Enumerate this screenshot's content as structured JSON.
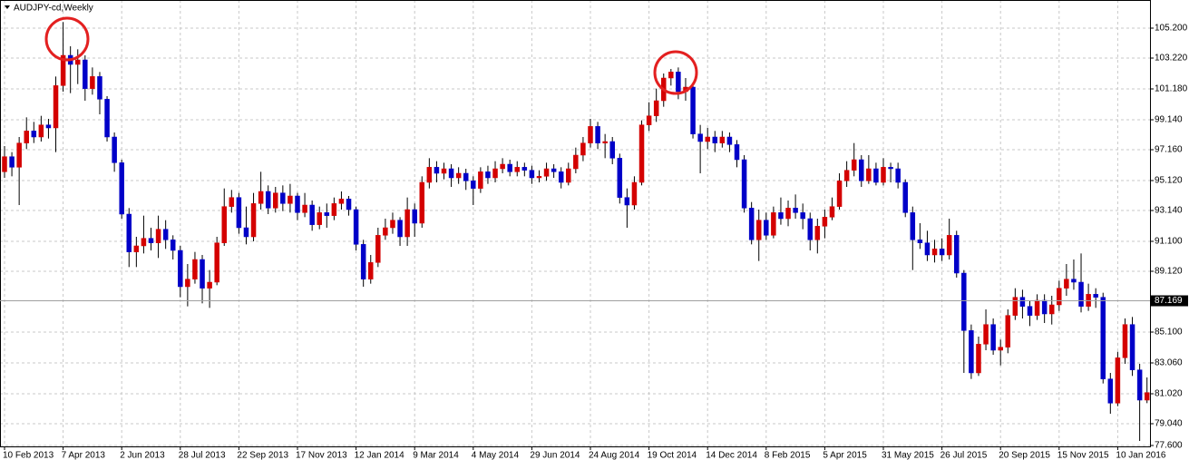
{
  "chart_data": {
    "type": "candlestick",
    "title": "AUDJPY-cd,Weekly",
    "categories": [
      "10 Feb 2013",
      null,
      null,
      null,
      null,
      null,
      null,
      null,
      "7 Apr 2013",
      null,
      null,
      null,
      null,
      null,
      null,
      null,
      "2 Jun 2013",
      null,
      null,
      null,
      null,
      null,
      null,
      null,
      "28 Jul 2013",
      null,
      null,
      null,
      null,
      null,
      null,
      null,
      "22 Sep 2013",
      null,
      null,
      null,
      null,
      null,
      null,
      null,
      "17 Nov 2013",
      null,
      null,
      null,
      null,
      null,
      null,
      null,
      "12 Jan 2014",
      null,
      null,
      null,
      null,
      null,
      null,
      null,
      "9 Mar 2014",
      null,
      null,
      null,
      null,
      null,
      null,
      null,
      "4 May 2014",
      null,
      null,
      null,
      null,
      null,
      null,
      null,
      "29 Jun 2014",
      null,
      null,
      null,
      null,
      null,
      null,
      null,
      "24 Aug 2014",
      null,
      null,
      null,
      null,
      null,
      null,
      null,
      "19 Oct 2014",
      null,
      null,
      null,
      null,
      null,
      null,
      null,
      "14 Dec 2014",
      null,
      null,
      null,
      null,
      null,
      null,
      null,
      "8 Feb 2015",
      null,
      null,
      null,
      null,
      null,
      null,
      null,
      "5 Apr 2015",
      null,
      null,
      null,
      null,
      null,
      null,
      null,
      "31 May 2015",
      null,
      null,
      null,
      null,
      null,
      null,
      null,
      "26 Jul 2015",
      null,
      null,
      null,
      null,
      null,
      null,
      null,
      "20 Sep 2015",
      null,
      null,
      null,
      null,
      null,
      null,
      null,
      "15 Nov 2015",
      null,
      null,
      null,
      null,
      null,
      null,
      null,
      "10 Jan 2016",
      null,
      null,
      null,
      null
    ],
    "open": [
      95.7,
      96.7,
      96.0,
      97.6,
      98.4,
      98.0,
      98.8,
      98.6,
      101.4,
      103.4,
      102.8,
      103.1,
      101.2,
      102.0,
      100.5,
      98.0,
      96.3,
      92.9,
      90.4,
      90.8,
      91.3,
      91.0,
      91.9,
      91.2,
      90.5,
      88.1,
      88.6,
      89.9,
      88.0,
      88.4,
      91.0,
      93.4,
      94.0,
      92.0,
      91.4,
      93.6,
      94.4,
      93.3,
      94.3,
      93.6,
      94.1,
      93.0,
      93.5,
      92.2,
      93.0,
      92.8,
      93.6,
      93.9,
      93.2,
      90.9,
      88.6,
      89.7,
      91.5,
      92.0,
      92.5,
      91.4,
      93.2,
      92.3,
      95.0,
      96.0,
      95.6,
      95.9,
      95.3,
      95.6,
      95.1,
      94.6,
      95.7,
      95.3,
      95.9,
      96.2,
      95.7,
      96.0,
      95.8,
      95.3,
      95.4,
      95.9,
      95.7,
      95.0,
      95.9,
      96.8,
      97.6,
      98.7,
      97.6,
      97.7,
      96.6,
      94.0,
      93.5,
      95.0,
      98.8,
      99.4,
      100.4,
      101.9,
      102.3,
      101.0,
      101.3,
      98.2,
      97.7,
      98.0,
      97.6,
      98.0,
      97.5,
      96.5,
      93.3,
      91.2,
      92.5,
      91.5,
      93.0,
      92.6,
      93.3,
      93.0,
      92.6,
      91.2,
      92.1,
      92.7,
      93.4,
      95.1,
      95.8,
      96.5,
      95.1,
      95.9,
      95.0,
      96.0,
      95.9,
      95.0,
      93.0,
      91.2,
      91.0,
      90.2,
      90.6,
      90.2,
      91.5,
      89.0,
      85.2,
      82.4,
      84.3,
      85.6,
      83.9,
      84.1,
      86.2,
      87.4,
      86.8,
      86.2,
      87.2,
      86.3,
      86.9,
      88.0,
      88.6,
      88.4,
      86.8,
      87.6,
      87.4,
      82.0,
      80.4,
      83.4,
      85.6,
      82.6,
      80.6
    ],
    "high": [
      97.4,
      97.0,
      98.0,
      99.3,
      99.0,
      99.4,
      99.2,
      102.0,
      105.6,
      104.0,
      103.8,
      103.4,
      102.6,
      102.3,
      100.7,
      98.3,
      96.5,
      93.3,
      91.4,
      92.8,
      92.0,
      92.8,
      92.5,
      91.5,
      90.8,
      89.6,
      90.4,
      90.2,
      89.2,
      91.4,
      94.6,
      94.5,
      94.3,
      93.4,
      94.3,
      95.7,
      94.8,
      94.7,
      94.8,
      94.9,
      94.3,
      94.3,
      93.8,
      93.4,
      93.6,
      94.0,
      94.4,
      94.1,
      93.4,
      91.2,
      90.2,
      92.0,
      92.6,
      93.0,
      92.7,
      94.0,
      93.6,
      95.4,
      96.6,
      96.4,
      96.3,
      96.2,
      96.0,
      95.9,
      95.4,
      96.0,
      96.1,
      96.4,
      96.6,
      96.5,
      96.4,
      96.3,
      96.1,
      95.8,
      96.3,
      96.2,
      96.0,
      96.3,
      97.3,
      98.0,
      99.2,
      99.0,
      98.2,
      98.0,
      96.9,
      94.6,
      95.4,
      99.1,
      100.3,
      101.2,
      102.2,
      102.5,
      102.6,
      101.9,
      101.6,
      98.8,
      98.6,
      98.4,
      98.4,
      98.3,
      97.8,
      96.8,
      93.7,
      93.2,
      93.0,
      93.4,
      94.0,
      93.8,
      94.2,
      93.6,
      93.0,
      92.6,
      93.2,
      94.0,
      95.6,
      96.4,
      97.6,
      96.8,
      96.8,
      96.3,
      96.6,
      96.3,
      96.3,
      95.2,
      93.4,
      92.3,
      91.8,
      91.2,
      91.3,
      92.6,
      91.8,
      89.2,
      85.6,
      84.8,
      86.6,
      86.0,
      84.6,
      86.6,
      88.0,
      87.9,
      87.2,
      87.6,
      87.6,
      87.5,
      88.5,
      89.6,
      89.9,
      90.3,
      88.3,
      88.0,
      87.7,
      82.4,
      83.8,
      86.0,
      86.1,
      83.0,
      82.1
    ],
    "low": [
      95.3,
      95.4,
      93.5,
      97.2,
      97.6,
      97.7,
      97.9,
      97.0,
      101.0,
      100.9,
      101.5,
      100.4,
      100.8,
      99.5,
      97.7,
      95.7,
      92.6,
      89.4,
      89.4,
      90.3,
      90.5,
      90.0,
      90.6,
      89.9,
      87.4,
      86.8,
      88.3,
      87.0,
      86.7,
      88.2,
      90.8,
      93.0,
      91.6,
      90.9,
      91.1,
      93.2,
      92.9,
      93.0,
      93.1,
      93.0,
      92.5,
      92.7,
      91.8,
      91.9,
      92.0,
      92.5,
      93.2,
      92.8,
      90.5,
      88.1,
      88.3,
      89.4,
      91.2,
      91.6,
      90.8,
      90.8,
      91.4,
      92.0,
      94.6,
      95.0,
      95.2,
      94.7,
      94.9,
      94.5,
      93.5,
      94.3,
      94.9,
      95.0,
      95.6,
      95.4,
      95.4,
      95.4,
      94.9,
      95.0,
      95.1,
      95.3,
      94.6,
      94.8,
      95.6,
      96.4,
      97.3,
      97.2,
      96.6,
      96.2,
      93.6,
      92.0,
      93.2,
      94.8,
      98.4,
      99.0,
      100.0,
      101.4,
      100.5,
      100.4,
      97.9,
      95.6,
      97.2,
      97.0,
      97.3,
      97.0,
      96.0,
      93.0,
      90.9,
      89.8,
      91.2,
      91.3,
      92.2,
      92.1,
      92.6,
      91.9,
      90.5,
      90.3,
      91.3,
      92.5,
      93.2,
      94.7,
      95.4,
      94.7,
      94.9,
      94.8,
      94.8,
      95.0,
      94.6,
      92.7,
      89.2,
      90.6,
      89.8,
      89.7,
      89.8,
      89.9,
      88.7,
      82.4,
      82.0,
      82.2,
      83.9,
      83.6,
      82.9,
      83.7,
      85.9,
      86.0,
      85.5,
      85.9,
      85.7,
      85.6,
      86.5,
      87.5,
      87.9,
      86.4,
      86.5,
      86.7,
      81.7,
      79.7,
      80.2,
      83.0,
      82.2,
      77.9,
      80.4
    ],
    "close": [
      96.7,
      96.0,
      97.6,
      98.4,
      98.0,
      98.8,
      98.6,
      101.4,
      103.4,
      102.8,
      103.1,
      101.2,
      102.0,
      100.5,
      98.0,
      96.3,
      92.9,
      90.4,
      90.8,
      91.3,
      91.0,
      91.9,
      91.2,
      90.5,
      88.1,
      88.6,
      89.9,
      88.0,
      88.4,
      91.0,
      93.4,
      94.0,
      92.0,
      91.4,
      93.6,
      94.4,
      93.3,
      94.3,
      93.6,
      94.1,
      93.0,
      93.5,
      92.2,
      93.0,
      92.8,
      93.6,
      93.9,
      93.2,
      90.9,
      88.6,
      89.7,
      91.5,
      92.0,
      92.5,
      91.4,
      93.2,
      92.3,
      95.0,
      96.0,
      95.6,
      95.9,
      95.3,
      95.6,
      95.1,
      94.6,
      95.7,
      95.3,
      95.9,
      96.2,
      95.7,
      96.0,
      95.8,
      95.3,
      95.4,
      95.9,
      95.7,
      95.0,
      95.9,
      96.8,
      97.6,
      98.7,
      97.6,
      97.7,
      96.6,
      94.0,
      93.5,
      95.0,
      98.8,
      99.4,
      100.4,
      101.9,
      102.3,
      101.0,
      101.3,
      98.2,
      97.7,
      98.0,
      97.6,
      98.0,
      97.5,
      96.5,
      93.3,
      91.2,
      92.5,
      91.5,
      93.0,
      92.6,
      93.3,
      93.0,
      92.6,
      91.2,
      92.1,
      92.7,
      93.4,
      95.1,
      95.8,
      96.5,
      95.1,
      95.9,
      95.0,
      96.0,
      95.9,
      95.0,
      93.0,
      91.2,
      91.0,
      90.2,
      90.6,
      90.2,
      91.5,
      89.0,
      85.2,
      82.4,
      84.3,
      85.6,
      83.9,
      84.1,
      86.2,
      87.4,
      86.8,
      86.2,
      87.2,
      86.3,
      86.9,
      88.0,
      88.6,
      88.4,
      86.8,
      87.6,
      87.4,
      82.0,
      80.4,
      83.4,
      85.6,
      82.6,
      80.6,
      81.1
    ],
    "up_color": "#d40000",
    "down_color": "#0000c8",
    "wick_color": "#000000",
    "ylim": [
      77.54,
      107.06
    ],
    "yticks": [
      {
        "value": 105.2,
        "label": "105.200"
      },
      {
        "value": 103.22,
        "label": "103.220"
      },
      {
        "value": 101.18,
        "label": "101.180"
      },
      {
        "value": 99.14,
        "label": "99.140"
      },
      {
        "value": 97.16,
        "label": "97.160"
      },
      {
        "value": 95.12,
        "label": "95.120"
      },
      {
        "value": 93.14,
        "label": "93.140"
      },
      {
        "value": 91.1,
        "label": "91.100"
      },
      {
        "value": 89.12,
        "label": "89.120"
      },
      {
        "value": 85.1,
        "label": "85.100"
      },
      {
        "value": 83.06,
        "label": "83.060"
      },
      {
        "value": 81.02,
        "label": "81.020"
      },
      {
        "value": 79.04,
        "label": "79.040"
      },
      {
        "value": 77.6,
        "label": "77.600"
      }
    ],
    "price_line": 87.169,
    "grid": true
  }
}
